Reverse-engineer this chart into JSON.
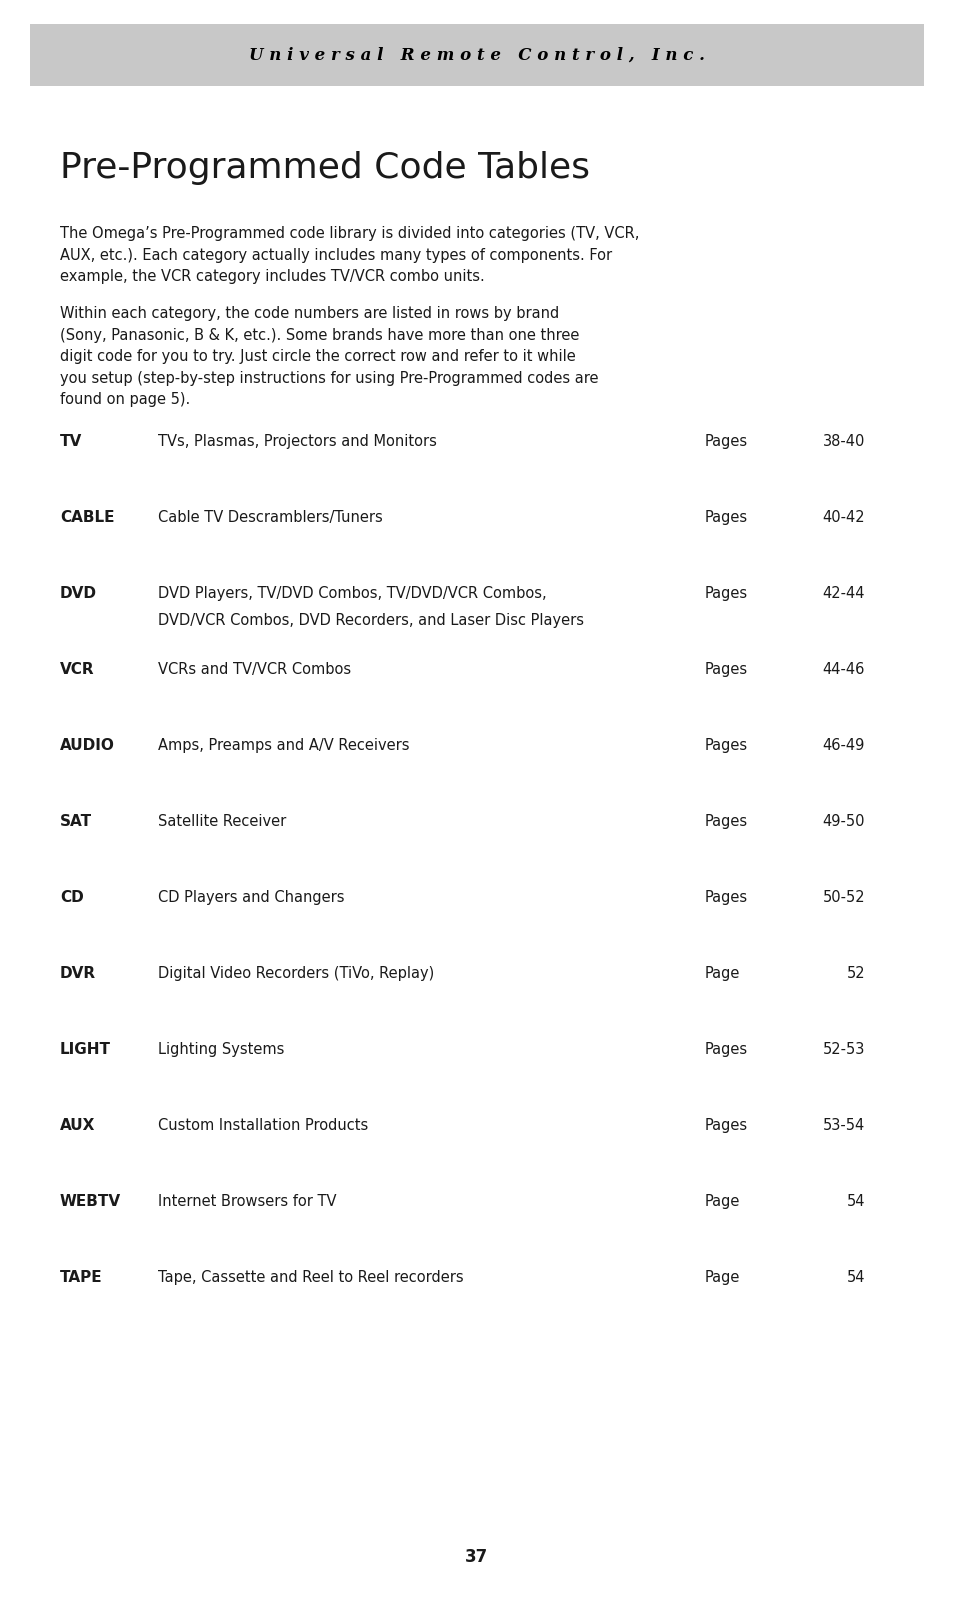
{
  "header_text": "U n i v e r s a l   R e m o t e   C o n t r o l ,   I n c .",
  "header_bg": "#c8c8c8",
  "header_text_color": "#000000",
  "page_bg": "#ffffff",
  "title": "Pre-Programmed Code Tables",
  "para1": "The Omega’s Pre-Programmed code library is divided into categories (TV, VCR,\nAUX, etc.). Each category actually includes many types of components. For\nexample, the VCR category includes TV/VCR combo units.",
  "para2": "Within each category, the code numbers are listed in rows by brand\n(Sony, Panasonic, B & K, etc.). Some brands have more than one three\ndigit code for you to try. Just circle the correct row and refer to it while\nyou setup (step-by-step instructions for using Pre-Programmed codes are\nfound on page 5).",
  "entries": [
    {
      "code": "TV",
      "desc": "TVs, Plasmas, Projectors and Monitors",
      "desc2": "",
      "pages_label": "Pages",
      "pages_num": "38-40"
    },
    {
      "code": "CABLE",
      "desc": "Cable TV Descramblers/Tuners",
      "desc2": "",
      "pages_label": "Pages",
      "pages_num": "40-42"
    },
    {
      "code": "DVD",
      "desc": "DVD Players, TV/DVD Combos, TV/DVD/VCR Combos,",
      "desc2": "DVD/VCR Combos, DVD Recorders, and Laser Disc Players",
      "pages_label": "Pages",
      "pages_num": "42-44"
    },
    {
      "code": "VCR",
      "desc": "VCRs and TV/VCR Combos",
      "desc2": "",
      "pages_label": "Pages",
      "pages_num": "44-46"
    },
    {
      "code": "AUDIO",
      "desc": "Amps, Preamps and A/V Receivers",
      "desc2": "",
      "pages_label": "Pages",
      "pages_num": "46-49"
    },
    {
      "code": "SAT",
      "desc": "Satellite Receiver",
      "desc2": "",
      "pages_label": "Pages",
      "pages_num": "49-50"
    },
    {
      "code": "CD",
      "desc": "CD Players and Changers",
      "desc2": "",
      "pages_label": "Pages",
      "pages_num": "50-52"
    },
    {
      "code": "DVR",
      "desc": "Digital Video Recorders (TiVo, Replay)",
      "desc2": "",
      "pages_label": "Page",
      "pages_num": "52"
    },
    {
      "code": "LIGHT",
      "desc": "Lighting Systems",
      "desc2": "",
      "pages_label": "Pages",
      "pages_num": "52-53"
    },
    {
      "code": "AUX",
      "desc": "Custom Installation Products",
      "desc2": "",
      "pages_label": "Pages",
      "pages_num": "53-54"
    },
    {
      "code": "WEBTV",
      "desc": "Internet Browsers for TV",
      "desc2": "",
      "pages_label": "Page",
      "pages_num": "54"
    },
    {
      "code": "TAPE",
      "desc": "Tape, Cassette and Reel to Reel recorders",
      "desc2": "",
      "pages_label": "Page",
      "pages_num": "54"
    }
  ],
  "footer_page": "37",
  "text_color": "#1a1a1a",
  "header_font_size": 12,
  "title_font_size": 26,
  "body_font_size": 10.5,
  "code_font_size": 11,
  "entry_desc_font_size": 10.5,
  "pages_font_size": 10.5
}
